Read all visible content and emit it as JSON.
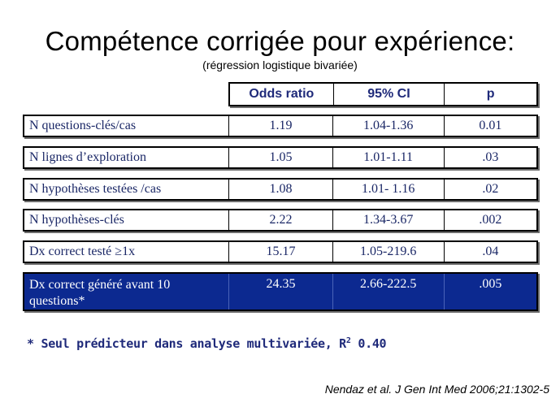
{
  "title": "Compétence corrigée pour expérience:",
  "subtitle": "(régression logistique bivariée)",
  "table": {
    "headers": [
      "Odds ratio",
      "95% CI",
      "p"
    ],
    "rows": [
      {
        "label": "N questions-clés/cas",
        "odds_ratio": "1.19",
        "ci": "1.04-1.36",
        "p": "0.01"
      },
      {
        "label": "N lignes d’exploration",
        "odds_ratio": "1.05",
        "ci": "1.01-1.11",
        "p": ".03"
      },
      {
        "label": "N hypothèses testées /cas",
        "odds_ratio": "1.08",
        "ci": "1.01- 1.16",
        "p": ".02"
      },
      {
        "label": "N hypothèses-clés",
        "odds_ratio": "2.22",
        "ci": "1.34-3.67",
        "p": ".002"
      },
      {
        "label": "Dx correct testé ≥1x",
        "odds_ratio": "15.17",
        "ci": "1.05-219.6",
        "p": ".04"
      },
      {
        "label": "Dx correct généré avant 10 questions*",
        "odds_ratio": "24.35",
        "ci": "2.66-222.5",
        "p": ".005"
      }
    ]
  },
  "footnote": {
    "text": "* Seul prédicteur dans analyse multivariée, R",
    "superscript": "2",
    "value": " 0.40"
  },
  "citation": "Nendaz et al. J Gen Int Med 2006;21:1302-5",
  "colors": {
    "highlight_row": "#0c2990",
    "text_navy": "#1a2766"
  }
}
